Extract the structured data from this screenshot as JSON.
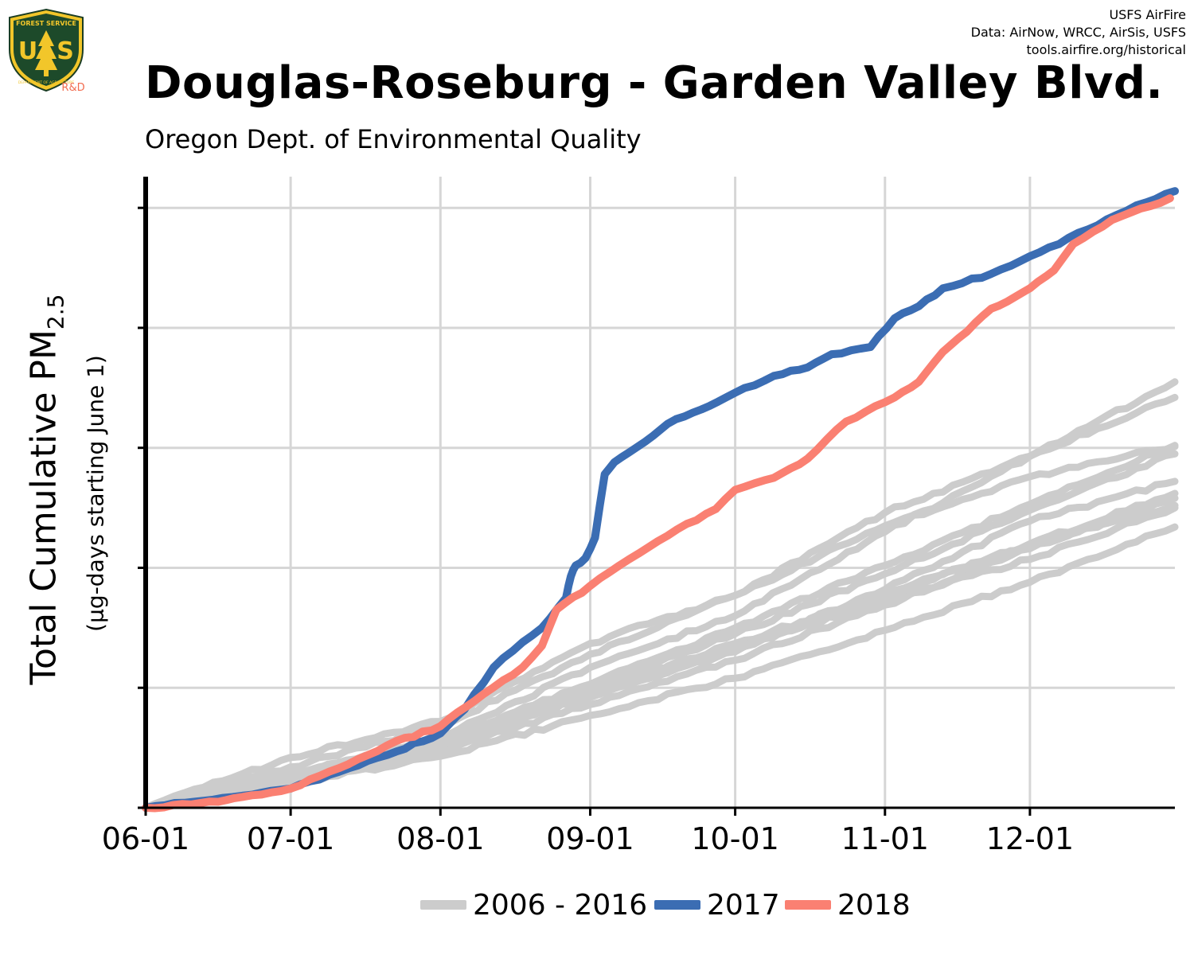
{
  "logo": {
    "agency_text": "FOREST SERVICE",
    "letters_left": "U",
    "letters_right": "S",
    "dept_text": "DEPARTMENT OF AGRICULTURE",
    "tag": "R&D"
  },
  "credits": {
    "line1": "USFS AirFire",
    "line2": "Data: AirNow, WRCC, AirSis, USFS",
    "line3": "tools.airfire.org/historical"
  },
  "title": "Douglas-Roseburg - Garden Valley Blvd.",
  "subtitle": "Oregon Dept. of Environmental Quality",
  "ylabel": {
    "main": "Total Cumulative PM",
    "sub": "2.5",
    "note": "(µg-days starting June 1)"
  },
  "colors": {
    "history": "#cccccc",
    "y2017": "#3b6db3",
    "y2018": "#fa8072",
    "grid": "#d6d6d6",
    "axis": "#000000"
  },
  "chart_data": {
    "type": "line",
    "title": "Douglas-Roseburg - Garden Valley Blvd.",
    "subtitle": "Oregon Dept. of Environmental Quality",
    "xlabel": "",
    "ylabel": "Total Cumulative PM2.5 (µg-days starting June 1)",
    "x_tick_labels": [
      "06-01",
      "07-01",
      "08-01",
      "09-01",
      "10-01",
      "11-01",
      "12-01"
    ],
    "x_tick_days": [
      0,
      30,
      61,
      92,
      122,
      153,
      183
    ],
    "xlim_days": [
      0,
      213
    ],
    "y_tick_labels": [],
    "y_ticks_rel": [
      0,
      1,
      2,
      3,
      4,
      5
    ],
    "ylim_rel": [
      0,
      5.26
    ],
    "grid": true,
    "legend_position": "bottom",
    "legend": [
      "2006 - 2016",
      "2017",
      "2018"
    ],
    "series": [
      {
        "name": "2006 - 2016",
        "group": "history",
        "values": [
          [
            0,
            0
          ],
          [
            30,
            0.27
          ],
          [
            61,
            0.58
          ],
          [
            92,
            1.17
          ],
          [
            122,
            1.6
          ],
          [
            153,
            2.3
          ],
          [
            183,
            2.93
          ],
          [
            213,
            3.42
          ]
        ]
      },
      {
        "name": "2006 - 2016",
        "group": "history",
        "values": [
          [
            0,
            0
          ],
          [
            30,
            0.34
          ],
          [
            61,
            0.68
          ],
          [
            92,
            1.28
          ],
          [
            122,
            1.77
          ],
          [
            153,
            2.46
          ],
          [
            183,
            2.93
          ],
          [
            213,
            3.55
          ]
        ]
      },
      {
        "name": "2006 - 2016",
        "group": "history",
        "values": [
          [
            0,
            0
          ],
          [
            30,
            0.42
          ],
          [
            61,
            0.72
          ],
          [
            92,
            1.37
          ],
          [
            122,
            1.77
          ],
          [
            153,
            2.35
          ],
          [
            183,
            2.76
          ],
          [
            213,
            3.01
          ]
        ]
      },
      {
        "name": "2006 - 2016",
        "group": "history",
        "values": [
          [
            0,
            0
          ],
          [
            30,
            0.27
          ],
          [
            61,
            0.57
          ],
          [
            92,
            1.03
          ],
          [
            122,
            1.5
          ],
          [
            153,
            2.02
          ],
          [
            183,
            2.53
          ],
          [
            213,
            3.02
          ]
        ]
      },
      {
        "name": "2006 - 2016",
        "group": "history",
        "values": [
          [
            0,
            0
          ],
          [
            30,
            0.23
          ],
          [
            61,
            0.55
          ],
          [
            92,
            0.92
          ],
          [
            122,
            1.3
          ],
          [
            153,
            1.82
          ],
          [
            183,
            2.39
          ],
          [
            213,
            2.72
          ]
        ]
      },
      {
        "name": "2006 - 2016",
        "group": "history",
        "values": [
          [
            0,
            0
          ],
          [
            30,
            0.2
          ],
          [
            61,
            0.43
          ],
          [
            92,
            0.77
          ],
          [
            122,
            1.08
          ],
          [
            153,
            1.48
          ],
          [
            183,
            1.88
          ],
          [
            213,
            2.34
          ]
        ]
      },
      {
        "name": "2006 - 2016",
        "group": "history",
        "values": [
          [
            0,
            0
          ],
          [
            30,
            0.22
          ],
          [
            61,
            0.48
          ],
          [
            92,
            0.86
          ],
          [
            122,
            1.23
          ],
          [
            153,
            1.69
          ],
          [
            183,
            2.16
          ],
          [
            213,
            2.58
          ]
        ]
      },
      {
        "name": "2006 - 2016",
        "group": "history",
        "values": [
          [
            0,
            0
          ],
          [
            30,
            0.25
          ],
          [
            61,
            0.52
          ],
          [
            92,
            0.98
          ],
          [
            122,
            1.34
          ],
          [
            153,
            1.72
          ],
          [
            183,
            2.07
          ],
          [
            213,
            2.5
          ]
        ]
      },
      {
        "name": "2006 - 2016",
        "group": "history",
        "values": [
          [
            0,
            0
          ],
          [
            30,
            0.24
          ],
          [
            61,
            0.5
          ],
          [
            92,
            0.95
          ],
          [
            122,
            1.37
          ],
          [
            153,
            1.78
          ],
          [
            183,
            2.19
          ],
          [
            213,
            2.52
          ]
        ]
      },
      {
        "name": "2006 - 2016",
        "group": "history",
        "values": [
          [
            0,
            0
          ],
          [
            30,
            0.29
          ],
          [
            61,
            0.53
          ],
          [
            92,
            1.0
          ],
          [
            122,
            1.45
          ],
          [
            153,
            1.95
          ],
          [
            183,
            2.48
          ],
          [
            213,
            2.95
          ]
        ]
      },
      {
        "name": "2006 - 2016",
        "group": "history",
        "values": [
          [
            0,
            0
          ],
          [
            30,
            0.26
          ],
          [
            61,
            0.51
          ],
          [
            92,
            0.93
          ],
          [
            122,
            1.32
          ],
          [
            153,
            1.76
          ],
          [
            183,
            2.2
          ],
          [
            213,
            2.62
          ]
        ]
      },
      {
        "name": "2017",
        "group": "y2017",
        "values": [
          [
            0,
            0
          ],
          [
            10,
            0.05
          ],
          [
            20,
            0.1
          ],
          [
            30,
            0.16
          ],
          [
            40,
            0.3
          ],
          [
            50,
            0.44
          ],
          [
            61,
            0.62
          ],
          [
            66,
            0.82
          ],
          [
            72,
            1.17
          ],
          [
            78,
            1.38
          ],
          [
            82,
            1.5
          ],
          [
            87,
            1.75
          ],
          [
            88,
            1.93
          ],
          [
            89,
            2.02
          ],
          [
            91,
            2.08
          ],
          [
            93,
            2.25
          ],
          [
            95,
            2.78
          ],
          [
            97,
            2.88
          ],
          [
            100,
            2.96
          ],
          [
            105,
            3.1
          ],
          [
            108,
            3.2
          ],
          [
            115,
            3.32
          ],
          [
            122,
            3.46
          ],
          [
            130,
            3.6
          ],
          [
            137,
            3.67
          ],
          [
            142,
            3.78
          ],
          [
            150,
            3.84
          ],
          [
            155,
            4.08
          ],
          [
            160,
            4.18
          ],
          [
            165,
            4.33
          ],
          [
            175,
            4.45
          ],
          [
            185,
            4.63
          ],
          [
            195,
            4.82
          ],
          [
            205,
            5.02
          ],
          [
            213,
            5.14
          ]
        ]
      },
      {
        "name": "2018",
        "group": "y2018",
        "values": [
          [
            0,
            0
          ],
          [
            15,
            0.05
          ],
          [
            20,
            0.09
          ],
          [
            30,
            0.16
          ],
          [
            40,
            0.33
          ],
          [
            50,
            0.52
          ],
          [
            61,
            0.68
          ],
          [
            70,
            0.95
          ],
          [
            78,
            1.17
          ],
          [
            82,
            1.35
          ],
          [
            85,
            1.65
          ],
          [
            92,
            1.85
          ],
          [
            100,
            2.07
          ],
          [
            110,
            2.32
          ],
          [
            118,
            2.49
          ],
          [
            122,
            2.65
          ],
          [
            130,
            2.75
          ],
          [
            137,
            2.91
          ],
          [
            145,
            3.22
          ],
          [
            155,
            3.42
          ],
          [
            160,
            3.55
          ],
          [
            165,
            3.8
          ],
          [
            170,
            3.97
          ],
          [
            175,
            4.16
          ],
          [
            180,
            4.26
          ],
          [
            183,
            4.33
          ],
          [
            188,
            4.48
          ],
          [
            192,
            4.7
          ],
          [
            200,
            4.9
          ],
          [
            212,
            5.08
          ]
        ]
      }
    ]
  },
  "legend": {
    "items": [
      {
        "label": "2006 - 2016"
      },
      {
        "label": "2017"
      },
      {
        "label": "2018"
      }
    ]
  }
}
